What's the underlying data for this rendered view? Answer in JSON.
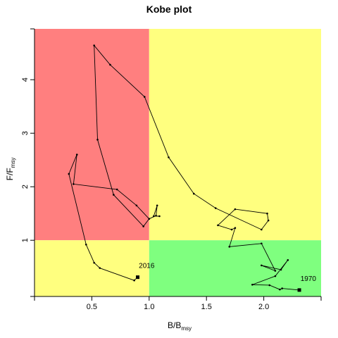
{
  "chart_data": {
    "type": "line",
    "title": "Kobe plot",
    "xlabel": {
      "main": "B/B",
      "sub": "msy"
    },
    "ylabel": {
      "main": "F/F",
      "sub": "msy"
    },
    "xlim": [
      0,
      2.5
    ],
    "ylim": [
      -0.05,
      4.95
    ],
    "x_ticks": [
      0.5,
      1.0,
      1.5,
      2.0
    ],
    "y_ticks": [
      1,
      2,
      3,
      4
    ],
    "grid": false,
    "legend": "none",
    "zones": [
      {
        "x": [
          0,
          1
        ],
        "y": [
          1,
          4.95
        ],
        "color": "#ff7f7f"
      },
      {
        "x": [
          1,
          2.5
        ],
        "y": [
          1,
          4.95
        ],
        "color": "#ffff7f"
      },
      {
        "x": [
          0,
          1
        ],
        "y": [
          -0.05,
          1
        ],
        "color": "#ffff7f"
      },
      {
        "x": [
          1,
          2.5
        ],
        "y": [
          -0.05,
          1
        ],
        "color": "#7fff7f"
      }
    ],
    "series": [
      {
        "line_color": "#000000",
        "points": [
          {
            "x": 2.31,
            "y": 0.07
          },
          {
            "x": 2.16,
            "y": 0.1
          },
          {
            "x": 2.14,
            "y": 0.08
          },
          {
            "x": 2.05,
            "y": 0.16
          },
          {
            "x": 1.9,
            "y": 0.17
          },
          {
            "x": 2.1,
            "y": 0.33
          },
          {
            "x": 2.21,
            "y": 0.63
          },
          {
            "x": 2.15,
            "y": 0.45
          },
          {
            "x": 1.98,
            "y": 0.53
          },
          {
            "x": 2.1,
            "y": 0.43
          },
          {
            "x": 1.98,
            "y": 0.94
          },
          {
            "x": 1.7,
            "y": 0.88
          },
          {
            "x": 1.75,
            "y": 1.23
          },
          {
            "x": 1.72,
            "y": 1.2
          },
          {
            "x": 1.6,
            "y": 1.28
          },
          {
            "x": 1.75,
            "y": 1.58
          },
          {
            "x": 2.03,
            "y": 1.5
          },
          {
            "x": 2.04,
            "y": 1.37
          },
          {
            "x": 1.98,
            "y": 1.2
          },
          {
            "x": 1.58,
            "y": 1.6
          },
          {
            "x": 1.39,
            "y": 1.87
          },
          {
            "x": 1.17,
            "y": 2.55
          },
          {
            "x": 0.96,
            "y": 3.68
          },
          {
            "x": 0.66,
            "y": 4.28
          },
          {
            "x": 0.52,
            "y": 4.64
          },
          {
            "x": 0.55,
            "y": 2.88
          },
          {
            "x": 0.69,
            "y": 1.85
          },
          {
            "x": 0.95,
            "y": 1.26
          },
          {
            "x": 1.0,
            "y": 1.4
          },
          {
            "x": 0.89,
            "y": 1.65
          },
          {
            "x": 0.72,
            "y": 1.95
          },
          {
            "x": 0.34,
            "y": 2.05
          },
          {
            "x": 0.37,
            "y": 2.6
          },
          {
            "x": 0.3,
            "y": 2.24
          },
          {
            "x": 0.45,
            "y": 0.92
          },
          {
            "x": 0.52,
            "y": 0.58
          },
          {
            "x": 0.57,
            "y": 0.48
          },
          {
            "x": 0.87,
            "y": 0.25
          },
          {
            "x": 0.9,
            "y": 0.31
          }
        ],
        "extra_branch": [
          {
            "x": 1.0,
            "y": 1.4
          },
          {
            "x": 1.06,
            "y": 1.46
          },
          {
            "x": 1.07,
            "y": 1.65
          },
          {
            "x": 1.04,
            "y": 1.45
          },
          {
            "x": 1.09,
            "y": 1.45
          }
        ]
      }
    ],
    "annotations": [
      {
        "text": "1970",
        "x": 2.32,
        "y": 0.24
      },
      {
        "text": "2016",
        "x": 0.91,
        "y": 0.48
      }
    ]
  }
}
